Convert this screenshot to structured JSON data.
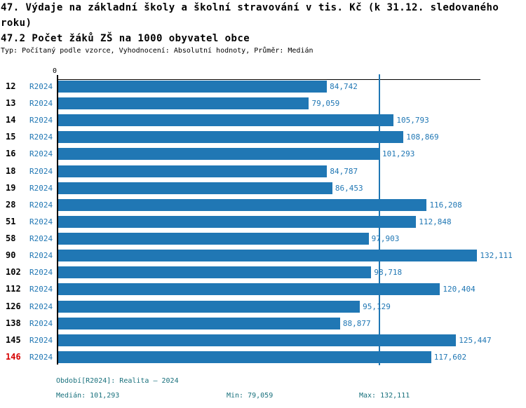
{
  "header": {
    "title_line1": "47. Výdaje na základní školy a školní stravování v tis. Kč (k 31.12. sledovaného",
    "title_line2": "roku)",
    "subtitle": "47.2 Počet žáků ZŠ na 1000 obyvatel obce",
    "meta": "Typ: Počítaný podle vzorce, Vyhodnocení: Absolutní hodnoty, Průměr: Medián"
  },
  "chart_data": {
    "type": "bar",
    "orientation": "horizontal",
    "title": "47. Výdaje na základní školy a školní stravování v tis. Kč (k 31.12. sledovaného roku)",
    "subtitle": "47.2 Počet žáků ZŠ na 1000 obyvatel obce",
    "categories": [
      "12",
      "13",
      "14",
      "15",
      "16",
      "18",
      "19",
      "28",
      "51",
      "58",
      "90",
      "102",
      "112",
      "126",
      "138",
      "145",
      "146"
    ],
    "series_label": "R2024",
    "values": [
      84742,
      79059,
      105793,
      108869,
      101293,
      84787,
      86453,
      116208,
      112848,
      97903,
      132111,
      98718,
      120404,
      95129,
      88877,
      125447,
      117602
    ],
    "value_labels": [
      "84,742",
      "79,059",
      "105,793",
      "108,869",
      "101,293",
      "84,787",
      "86,453",
      "116,208",
      "112,848",
      "97,903",
      "132,111",
      "98,718",
      "120,404",
      "95,129",
      "88,877",
      "125,447",
      "117,602"
    ],
    "highlighted_category": "146",
    "axis_origin_label": "0",
    "median_line_value": 101293,
    "xlim": [
      0,
      133000
    ],
    "legend_position": "none",
    "grid": false,
    "bar_color": "#2077b4",
    "label_color": "#2077b4",
    "highlight_color": "#d60000",
    "footer_color": "#18707c"
  },
  "footer": {
    "period": "Období[R2024]: Realita – 2024",
    "median": "Medián: 101,293",
    "min": "Min: 79,059",
    "max": "Max: 132,111"
  }
}
